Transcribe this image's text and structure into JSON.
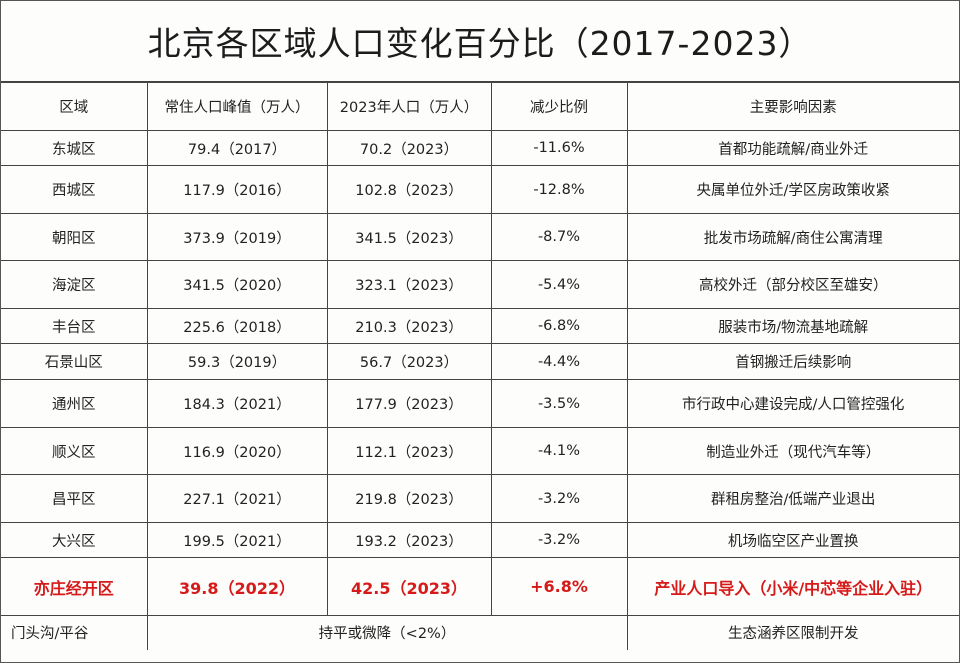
{
  "title": "北京各区域人口变化百分比（2017-2023）",
  "colors": {
    "highlight": "#d61a1a",
    "border": "#444444",
    "text": "#222222"
  },
  "headers": [
    "区域",
    "常住人口峰值（万人）",
    "2023年人口（万人）",
    "减少比例",
    "主要影响因素"
  ],
  "rows": [
    [
      "东城区",
      "79.4（2017）",
      "70.2（2023）",
      "-11.6%",
      "首都功能疏解/商业外迁"
    ],
    [
      "西城区",
      "117.9（2016）",
      "102.8（2023）",
      "-12.8%",
      "央属单位外迁/学区房政策收紧"
    ],
    [
      "朝阳区",
      "373.9（2019）",
      "341.5（2023）",
      "-8.7%",
      "批发市场疏解/商住公寓清理"
    ],
    [
      "海淀区",
      "341.5（2020）",
      "323.1（2023）",
      "-5.4%",
      "高校外迁（部分校区至雄安）"
    ],
    [
      "丰台区",
      "225.6（2018）",
      "210.3（2023）",
      "-6.8%",
      "服装市场/物流基地疏解"
    ],
    [
      "石景山区",
      "59.3（2019）",
      "56.7（2023）",
      "-4.4%",
      "首钢搬迁后续影响"
    ],
    [
      "通州区",
      "184.3（2021）",
      "177.9（2023）",
      "-3.5%",
      "市行政中心建设完成/人口管控强化"
    ],
    [
      "顺义区",
      "116.9（2020）",
      "112.1（2023）",
      "-4.1%",
      "制造业外迁（现代汽车等）"
    ],
    [
      "昌平区",
      "227.1（2021）",
      "219.8（2023）",
      "-3.2%",
      "群租房整治/低端产业退出"
    ],
    [
      "大兴区",
      "199.5（2021）",
      "193.2（2023）",
      "-3.2%",
      "机场临空区产业置换"
    ]
  ],
  "highlight_row": [
    "亦庄经开区",
    "39.8（2022）",
    "42.5（2023）",
    "+6.8%",
    "产业人口导入（小米/中芯等企业入驻）"
  ],
  "footer_row": {
    "region": "门头沟/平谷",
    "change": "持平或微降（<2%）",
    "factor": "生态涵养区限制开发"
  }
}
